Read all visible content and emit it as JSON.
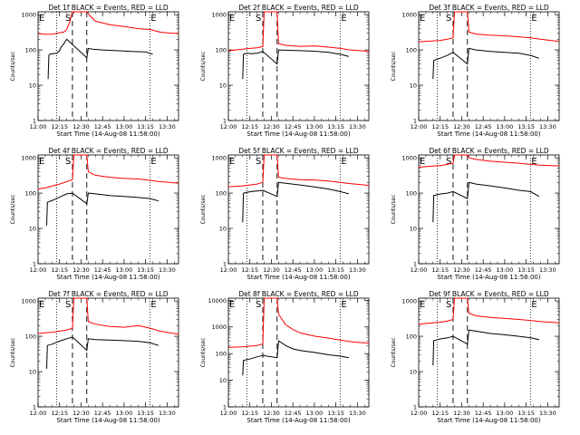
{
  "figure": {
    "xlabel": "Start Time (14-Aug-08 11:58:00)",
    "ylabel": "Counts/sec",
    "x_ticks": [
      "12:00",
      "12:15",
      "12:30",
      "12:45",
      "13:00",
      "13:15",
      "13:30"
    ],
    "y_ticks": [
      "1",
      "10",
      "100",
      "1000"
    ],
    "markers": {
      "E": "E",
      "S": "S"
    }
  },
  "chart_data": [
    {
      "type": "line",
      "title": "Det 1f BLACK = Events, RED = LLD",
      "xlabel": "Start Time (14-Aug-08 11:58:00)",
      "ylabel": "Counts/sec",
      "x_unit": "minutes since 12:00",
      "xlim": [
        0,
        98
      ],
      "ylim": [
        1,
        1200
      ],
      "yscale": "log",
      "vlines": {
        "dotted": [
          13,
          78
        ],
        "dashed": [
          24,
          34
        ]
      },
      "markers": {
        "E_x": [
          0,
          78
        ],
        "S_x": [
          24
        ]
      },
      "series": [
        {
          "name": "LLD",
          "color": "#ff0000",
          "x": [
            0,
            5,
            10,
            14,
            18,
            20,
            22,
            24,
            30,
            34,
            36,
            40,
            50,
            60,
            70,
            78,
            85,
            92,
            98
          ],
          "y": [
            290,
            275,
            280,
            300,
            320,
            380,
            600,
            1200,
            1200,
            1200,
            950,
            650,
            520,
            460,
            400,
            380,
            320,
            300,
            290
          ]
        },
        {
          "name": "Events",
          "color": "#000000",
          "x": [
            7,
            7.5,
            8,
            10,
            13,
            15,
            16,
            18,
            20,
            34,
            35,
            38,
            45,
            55,
            65,
            75,
            80
          ],
          "y": [
            15,
            70,
            75,
            78,
            80,
            95,
            120,
            150,
            200,
            60,
            110,
            105,
            100,
            95,
            90,
            88,
            75
          ]
        }
      ]
    },
    {
      "type": "line",
      "title": "Det 2f BLACK = Events, RED = LLD",
      "xlabel": "Start Time (14-Aug-08 11:58:00)",
      "ylabel": "Counts/sec",
      "x_unit": "minutes since 12:00",
      "xlim": [
        0,
        98
      ],
      "ylim": [
        1,
        1200
      ],
      "yscale": "log",
      "vlines": {
        "dotted": [
          13,
          78
        ],
        "dashed": [
          24,
          34
        ]
      },
      "markers": {
        "E_x": [
          0,
          78
        ],
        "S_x": [
          24
        ]
      },
      "series": [
        {
          "name": "LLD",
          "color": "#ff0000",
          "x": [
            0,
            5,
            10,
            15,
            20,
            24,
            25,
            30,
            34,
            35,
            40,
            50,
            60,
            70,
            78,
            85,
            92,
            98
          ],
          "y": [
            95,
            100,
            105,
            110,
            115,
            125,
            1200,
            1200,
            1200,
            150,
            135,
            125,
            130,
            120,
            110,
            100,
            95,
            90
          ]
        },
        {
          "name": "Events",
          "color": "#000000",
          "x": [
            10,
            10.5,
            13,
            16,
            20,
            24,
            34,
            35,
            40,
            50,
            60,
            70,
            78,
            84
          ],
          "y": [
            15,
            75,
            80,
            78,
            80,
            90,
            40,
            100,
            98,
            95,
            92,
            85,
            75,
            65
          ]
        }
      ]
    },
    {
      "type": "line",
      "title": "Det 3f BLACK = Events, RED = LLD",
      "xlabel": "Start Time (14-Aug-08 11:58:00)",
      "ylabel": "Counts/sec",
      "x_unit": "minutes since 12:00",
      "xlim": [
        0,
        98
      ],
      "ylim": [
        1,
        1200
      ],
      "yscale": "log",
      "vlines": {
        "dotted": [
          13,
          78
        ],
        "dashed": [
          24,
          34
        ]
      },
      "markers": {
        "E_x": [
          0,
          78
        ],
        "S_x": [
          24
        ]
      },
      "series": [
        {
          "name": "LLD",
          "color": "#ff0000",
          "x": [
            0,
            5,
            10,
            15,
            20,
            24,
            25,
            30,
            34,
            35,
            40,
            50,
            60,
            70,
            78,
            85,
            92,
            98
          ],
          "y": [
            170,
            175,
            180,
            185,
            200,
            220,
            1200,
            1200,
            1200,
            320,
            280,
            260,
            250,
            235,
            220,
            200,
            185,
            175
          ]
        },
        {
          "name": "Events",
          "color": "#000000",
          "x": [
            10,
            10.5,
            13,
            16,
            20,
            24,
            34,
            35,
            40,
            50,
            60,
            70,
            78,
            84
          ],
          "y": [
            15,
            50,
            55,
            60,
            70,
            85,
            40,
            110,
            100,
            90,
            85,
            80,
            70,
            58
          ]
        }
      ]
    },
    {
      "type": "line",
      "title": "Det 4f BLACK = Events, RED = LLD",
      "xlabel": "Start Time (14-Aug-08 11:58:00)",
      "ylabel": "Counts/sec",
      "x_unit": "minutes since 12:00",
      "xlim": [
        0,
        98
      ],
      "ylim": [
        1,
        1200
      ],
      "yscale": "log",
      "vlines": {
        "dotted": [
          13,
          78
        ],
        "dashed": [
          24,
          34
        ]
      },
      "markers": {
        "E_x": [
          0,
          78
        ],
        "S_x": [
          24
        ]
      },
      "series": [
        {
          "name": "LLD",
          "color": "#ff0000",
          "x": [
            0,
            5,
            10,
            15,
            20,
            24,
            25,
            30,
            34,
            35,
            40,
            50,
            60,
            70,
            78,
            85,
            92,
            98
          ],
          "y": [
            130,
            140,
            160,
            180,
            210,
            240,
            1200,
            1200,
            1200,
            400,
            320,
            280,
            260,
            250,
            230,
            210,
            200,
            190
          ]
        },
        {
          "name": "Events",
          "color": "#000000",
          "x": [
            6,
            6.5,
            10,
            13,
            16,
            20,
            24,
            34,
            35,
            40,
            50,
            60,
            70,
            78,
            84
          ],
          "y": [
            12,
            55,
            62,
            70,
            80,
            95,
            100,
            50,
            100,
            95,
            85,
            80,
            75,
            70,
            60
          ]
        }
      ]
    },
    {
      "type": "line",
      "title": "Det 5f BLACK = Events, RED = LLD",
      "xlabel": "Start Time (14-Aug-08 11:58:00)",
      "ylabel": "Counts/sec",
      "x_unit": "minutes since 12:00",
      "xlim": [
        0,
        98
      ],
      "ylim": [
        1,
        1200
      ],
      "yscale": "log",
      "vlines": {
        "dotted": [
          13,
          78
        ],
        "dashed": [
          24,
          34
        ]
      },
      "markers": {
        "E_x": [
          0,
          78
        ],
        "S_x": [
          24
        ]
      },
      "series": [
        {
          "name": "LLD",
          "color": "#ff0000",
          "x": [
            0,
            5,
            10,
            15,
            20,
            24,
            25,
            30,
            34,
            35,
            40,
            50,
            60,
            70,
            78,
            85,
            92,
            98
          ],
          "y": [
            150,
            155,
            160,
            170,
            180,
            200,
            1200,
            1200,
            1200,
            280,
            260,
            240,
            235,
            220,
            200,
            185,
            175,
            165
          ]
        },
        {
          "name": "Events",
          "color": "#000000",
          "x": [
            10,
            10.5,
            13,
            16,
            20,
            24,
            34,
            35,
            40,
            50,
            60,
            70,
            78,
            84
          ],
          "y": [
            15,
            100,
            105,
            110,
            115,
            120,
            80,
            200,
            190,
            170,
            150,
            130,
            110,
            95
          ]
        }
      ]
    },
    {
      "type": "line",
      "title": "Det 6f BLACK = Events, RED = LLD",
      "xlabel": "Start Time (14-Aug-08 11:58:00)",
      "ylabel": "Counts/sec",
      "x_unit": "minutes since 12:00",
      "xlim": [
        0,
        98
      ],
      "ylim": [
        1,
        1200
      ],
      "yscale": "log",
      "vlines": {
        "dotted": [
          13,
          78
        ],
        "dashed": [
          24,
          34
        ]
      },
      "markers": {
        "E_x": [
          0,
          78
        ],
        "S_x": [
          24
        ]
      },
      "series": [
        {
          "name": "LLD",
          "color": "#ff0000",
          "x": [
            0,
            5,
            10,
            15,
            20,
            24,
            25,
            30,
            34,
            35,
            40,
            50,
            60,
            70,
            78,
            85,
            92,
            98
          ],
          "y": [
            540,
            560,
            580,
            600,
            650,
            700,
            1200,
            1200,
            1200,
            1000,
            900,
            800,
            750,
            700,
            650,
            620,
            600,
            590
          ]
        },
        {
          "name": "Events",
          "color": "#000000",
          "x": [
            10,
            10.5,
            13,
            16,
            20,
            24,
            34,
            35,
            40,
            50,
            60,
            70,
            78,
            84
          ],
          "y": [
            15,
            85,
            90,
            95,
            100,
            110,
            70,
            200,
            180,
            160,
            140,
            120,
            110,
            80
          ]
        }
      ]
    },
    {
      "type": "line",
      "title": "Det 7f BLACK = Events, RED = LLD",
      "xlabel": "Start Time (14-Aug-08 11:58:00)",
      "ylabel": "Counts/sec",
      "x_unit": "minutes since 12:00",
      "xlim": [
        0,
        98
      ],
      "ylim": [
        1,
        1200
      ],
      "yscale": "log",
      "vlines": {
        "dotted": [
          13,
          78
        ],
        "dashed": [
          24,
          34
        ]
      },
      "markers": {
        "E_x": [
          0,
          78
        ],
        "S_x": [
          24
        ]
      },
      "series": [
        {
          "name": "LLD",
          "color": "#ff0000",
          "x": [
            0,
            5,
            10,
            15,
            20,
            24,
            25,
            30,
            34,
            35,
            40,
            50,
            60,
            70,
            78,
            85,
            92,
            98
          ],
          "y": [
            120,
            125,
            130,
            140,
            150,
            170,
            1200,
            1200,
            1200,
            260,
            220,
            190,
            180,
            200,
            170,
            140,
            125,
            115
          ]
        },
        {
          "name": "Events",
          "color": "#000000",
          "x": [
            6,
            6.5,
            10,
            13,
            16,
            20,
            24,
            34,
            35,
            40,
            50,
            60,
            70,
            78,
            84
          ],
          "y": [
            12,
            55,
            60,
            68,
            75,
            85,
            95,
            40,
            85,
            80,
            78,
            75,
            72,
            65,
            55
          ]
        }
      ]
    },
    {
      "type": "line",
      "title": "Det 8f BLACK = Events, RED = LLD",
      "xlabel": "Start Time (14-Aug-08 11:58:00)",
      "ylabel": "Counts/sec",
      "x_unit": "minutes since 12:00",
      "xlim": [
        0,
        98
      ],
      "ylim": [
        1,
        12000
      ],
      "yscale": "log",
      "vlines": {
        "dotted": [
          13,
          78
        ],
        "dashed": [
          24,
          34
        ]
      },
      "markers": {
        "E_x": [
          0,
          78
        ],
        "S_x": [
          24
        ]
      },
      "series": [
        {
          "name": "LLD",
          "color": "#ff0000",
          "x": [
            0,
            5,
            10,
            15,
            20,
            24,
            25,
            30,
            34,
            35,
            40,
            45,
            50,
            60,
            70,
            78,
            85,
            92,
            98
          ],
          "y": [
            170,
            175,
            180,
            190,
            200,
            230,
            12000,
            12000,
            12000,
            3000,
            1200,
            800,
            600,
            450,
            380,
            320,
            280,
            260,
            250
          ]
        },
        {
          "name": "Events",
          "color": "#000000",
          "x": [
            10,
            10.5,
            13,
            16,
            20,
            24,
            34,
            35,
            40,
            45,
            50,
            60,
            70,
            78,
            84
          ],
          "y": [
            15,
            55,
            60,
            65,
            75,
            85,
            70,
            300,
            200,
            150,
            130,
            110,
            90,
            80,
            70
          ]
        }
      ]
    },
    {
      "type": "line",
      "title": "Det 9f BLACK = Events, RED = LLD",
      "xlabel": "Start Time (14-Aug-08 11:58:00)",
      "ylabel": "Counts/sec",
      "x_unit": "minutes since 12:00",
      "xlim": [
        0,
        98
      ],
      "ylim": [
        1,
        1200
      ],
      "yscale": "log",
      "vlines": {
        "dotted": [
          13,
          78
        ],
        "dashed": [
          24,
          34
        ]
      },
      "markers": {
        "E_x": [
          0,
          78
        ],
        "S_x": [
          24
        ]
      },
      "series": [
        {
          "name": "LLD",
          "color": "#ff0000",
          "x": [
            0,
            5,
            10,
            15,
            20,
            24,
            25,
            30,
            34,
            35,
            40,
            50,
            60,
            70,
            78,
            85,
            92,
            98
          ],
          "y": [
            220,
            230,
            240,
            250,
            270,
            300,
            1200,
            1200,
            1200,
            450,
            380,
            340,
            320,
            300,
            280,
            260,
            250,
            240
          ]
        },
        {
          "name": "Events",
          "color": "#000000",
          "x": [
            10,
            10.5,
            13,
            16,
            20,
            24,
            34,
            35,
            40,
            50,
            60,
            70,
            78,
            84
          ],
          "y": [
            15,
            75,
            80,
            85,
            90,
            100,
            60,
            150,
            140,
            120,
            110,
            100,
            90,
            80
          ]
        }
      ]
    }
  ]
}
